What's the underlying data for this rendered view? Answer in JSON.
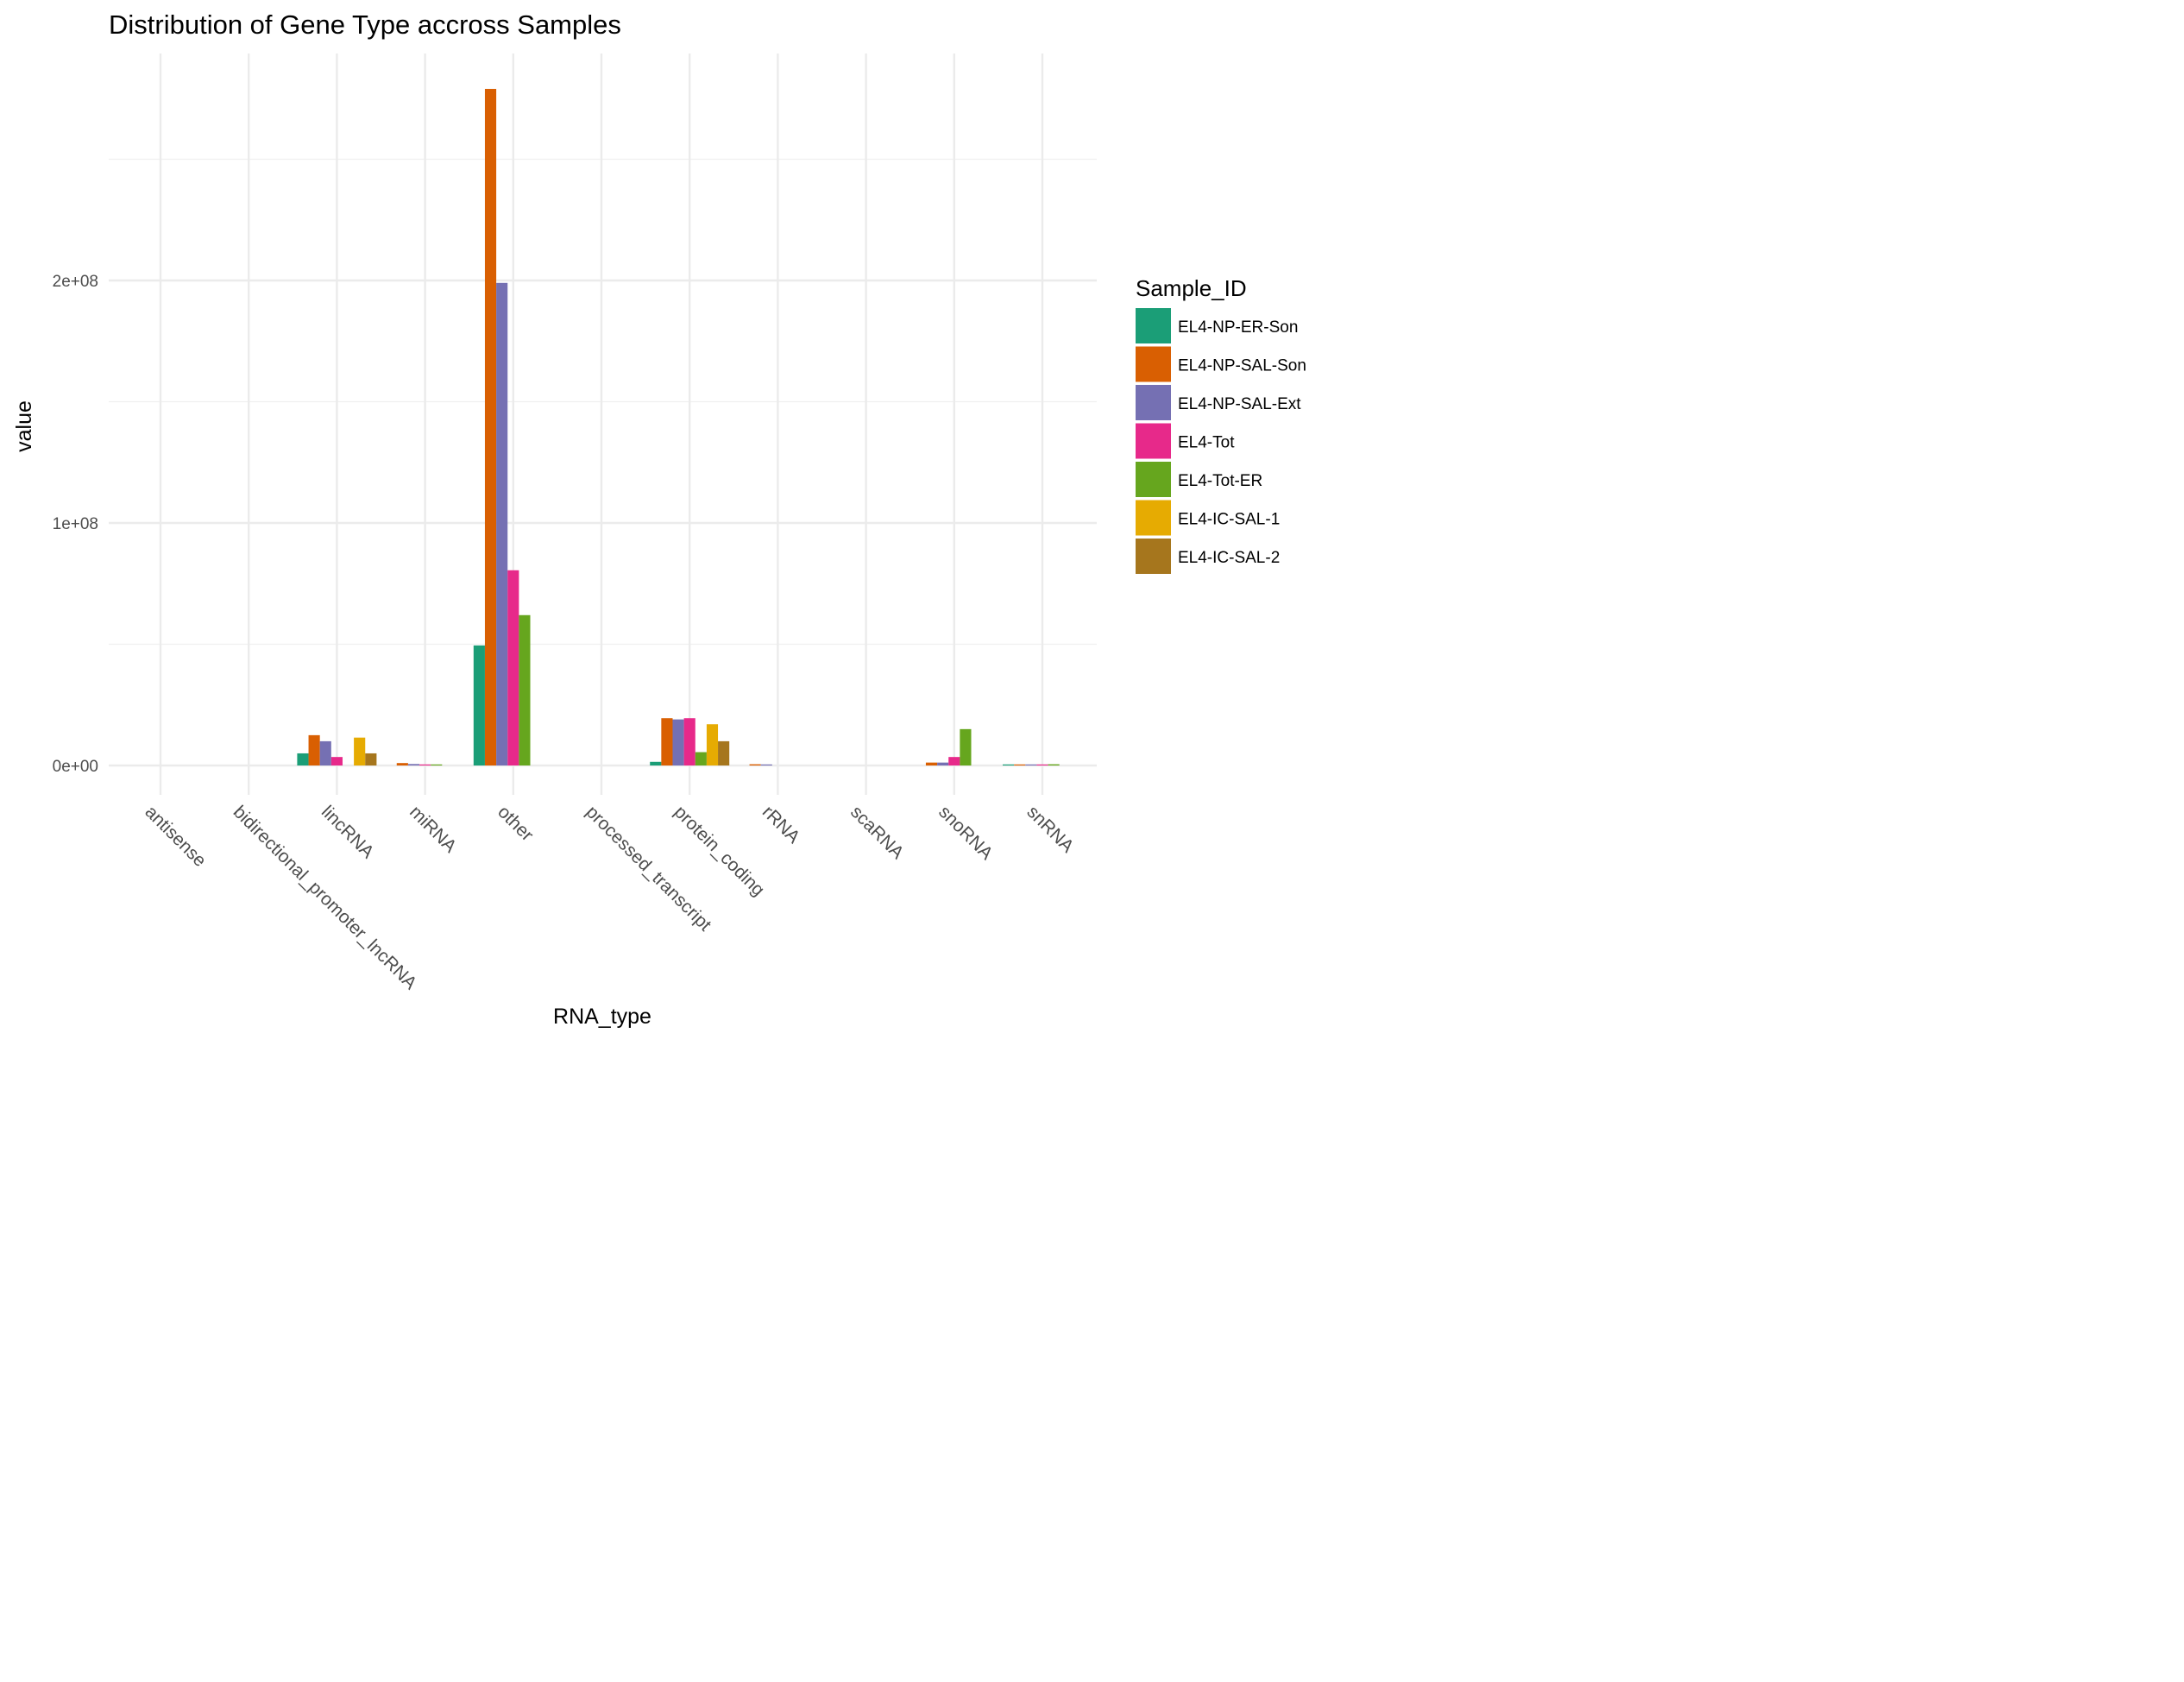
{
  "chart_data": {
    "type": "bar",
    "title": "Distribution of Gene Type accross Samples",
    "xlabel": "RNA_type",
    "ylabel": "value",
    "ylim": [
      -5000000,
      280000000
    ],
    "yticks": [
      0,
      100000000,
      200000000
    ],
    "ytick_labels": [
      "0e+00",
      "1e+08",
      "2e+08"
    ],
    "grid": true,
    "legend_position": "right",
    "legend_title": "Sample_ID",
    "categories": [
      "antisense",
      "bidirectional_promoter_lncRNA",
      "lincRNA",
      "miRNA",
      "other",
      "processed_transcript",
      "protein_coding",
      "rRNA",
      "scaRNA",
      "snoRNA",
      "snRNA"
    ],
    "series": [
      {
        "name": "EL4-NP-ER-Son",
        "color": "#1B9E77",
        "values": [
          0,
          0,
          5000000,
          0,
          49500000,
          0,
          1500000,
          0,
          0,
          0,
          300000
        ]
      },
      {
        "name": "EL4-NP-SAL-Son",
        "color": "#D95F02",
        "values": [
          0,
          0,
          12500000,
          1000000,
          279000000,
          0,
          19500000,
          500000,
          0,
          1200000,
          400000
        ]
      },
      {
        "name": "EL4-NP-SAL-Ext",
        "color": "#7570B3",
        "values": [
          0,
          0,
          10000000,
          600000,
          199000000,
          0,
          19000000,
          300000,
          0,
          1200000,
          300000
        ]
      },
      {
        "name": "EL4-Tot",
        "color": "#E7298A",
        "values": [
          0,
          0,
          3500000,
          400000,
          80500000,
          0,
          19500000,
          0,
          0,
          3500000,
          300000
        ]
      },
      {
        "name": "EL4-Tot-ER",
        "color": "#66A61E",
        "values": [
          0,
          0,
          0,
          300000,
          62000000,
          0,
          5500000,
          0,
          0,
          15000000,
          500000
        ]
      },
      {
        "name": "EL4-IC-SAL-1",
        "color": "#E6AB02",
        "values": [
          0,
          0,
          11500000,
          0,
          0,
          0,
          17000000,
          0,
          0,
          0,
          0
        ]
      },
      {
        "name": "EL4-IC-SAL-2",
        "color": "#A6761D",
        "values": [
          0,
          0,
          5000000,
          0,
          0,
          0,
          10000000,
          0,
          0,
          0,
          0
        ]
      }
    ]
  }
}
